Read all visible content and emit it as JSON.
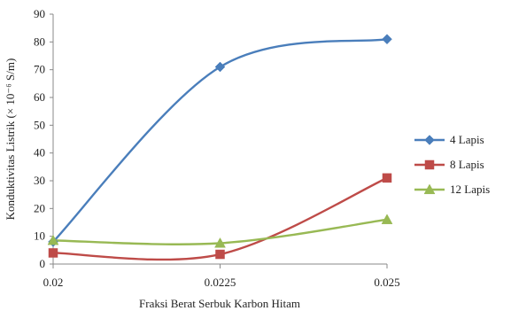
{
  "chart_data": {
    "type": "line",
    "title": "",
    "xlabel": "Fraksi Berat Serbuk Karbon Hitam",
    "ylabel": "Konduktivitas Listrik (× 10⁻⁶ S/m)",
    "categories": [
      "0.02",
      "0.0225",
      "0.025"
    ],
    "ylim": [
      0,
      90
    ],
    "yticks": [
      "0",
      "10",
      "20",
      "30",
      "40",
      "50",
      "60",
      "70",
      "80",
      "90"
    ],
    "grid": false,
    "smooth": true,
    "legend_position": "right",
    "series": [
      {
        "name": "4 Lapis",
        "values": [
          8,
          71,
          81
        ],
        "color": "#4a7ebb",
        "marker": "diamond"
      },
      {
        "name": "8 Lapis",
        "values": [
          4,
          3.5,
          31
        ],
        "color": "#be4b48",
        "marker": "square"
      },
      {
        "name": "12 Lapis",
        "values": [
          8.5,
          7.5,
          16
        ],
        "color": "#98b954",
        "marker": "triangle"
      }
    ]
  }
}
